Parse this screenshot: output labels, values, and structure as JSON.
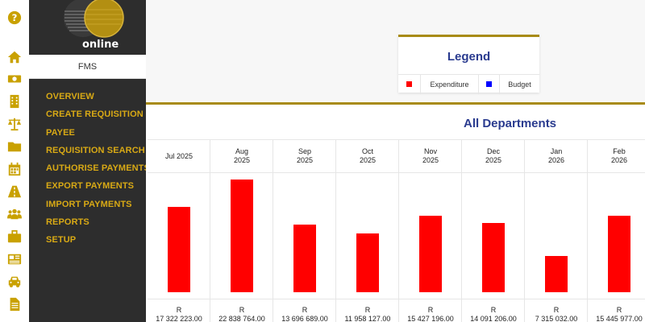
{
  "rail": {
    "icons": [
      "help-icon",
      "home-icon",
      "money-icon",
      "building-icon",
      "scales-icon",
      "folder-icon",
      "calendar-icon",
      "road-icon",
      "users-icon",
      "briefcase-icon",
      "newspaper-icon",
      "car-icon",
      "document-icon"
    ]
  },
  "logo": {
    "text": "online"
  },
  "app": {
    "name": "FMS"
  },
  "menu": {
    "items": [
      "OVERVIEW",
      "CREATE REQUISITION",
      "PAYEE",
      "REQUISITION SEARCH",
      "AUTHORISE PAYMENTS",
      "EXPORT PAYMENTS",
      "IMPORT PAYMENTS",
      "REPORTS",
      "SETUP"
    ]
  },
  "legend": {
    "title": "Legend",
    "items": [
      {
        "label": "Expenditure",
        "color": "#ff0000"
      },
      {
        "label": "Budget",
        "color": "#0000ff"
      }
    ]
  },
  "panel": {
    "title": "All Departments"
  },
  "chart_data": {
    "type": "bar",
    "title": "All Departments",
    "categories_month": [
      "Jul",
      "Aug",
      "Sep",
      "Oct",
      "Nov",
      "Dec",
      "Jan",
      "Feb"
    ],
    "categories_year": [
      "2025",
      "2025",
      "2025",
      "2025",
      "2025",
      "2025",
      "2026",
      "2026"
    ],
    "series": [
      {
        "name": "Expenditure",
        "color": "#ff0000",
        "values": [
          17322223.0,
          22838764.0,
          13696689.0,
          11958127.0,
          15427196.0,
          14091206.0,
          7315032.0,
          15445977.0
        ]
      }
    ],
    "value_prefix": "R",
    "value_labels": [
      "17 322 223.00",
      "22 838 764.00",
      "13 696 689.00",
      "11 958 127.00",
      "15 427 196.00",
      "14 091 206.00",
      "7 315 032.00",
      "15 445 977.00"
    ]
  }
}
